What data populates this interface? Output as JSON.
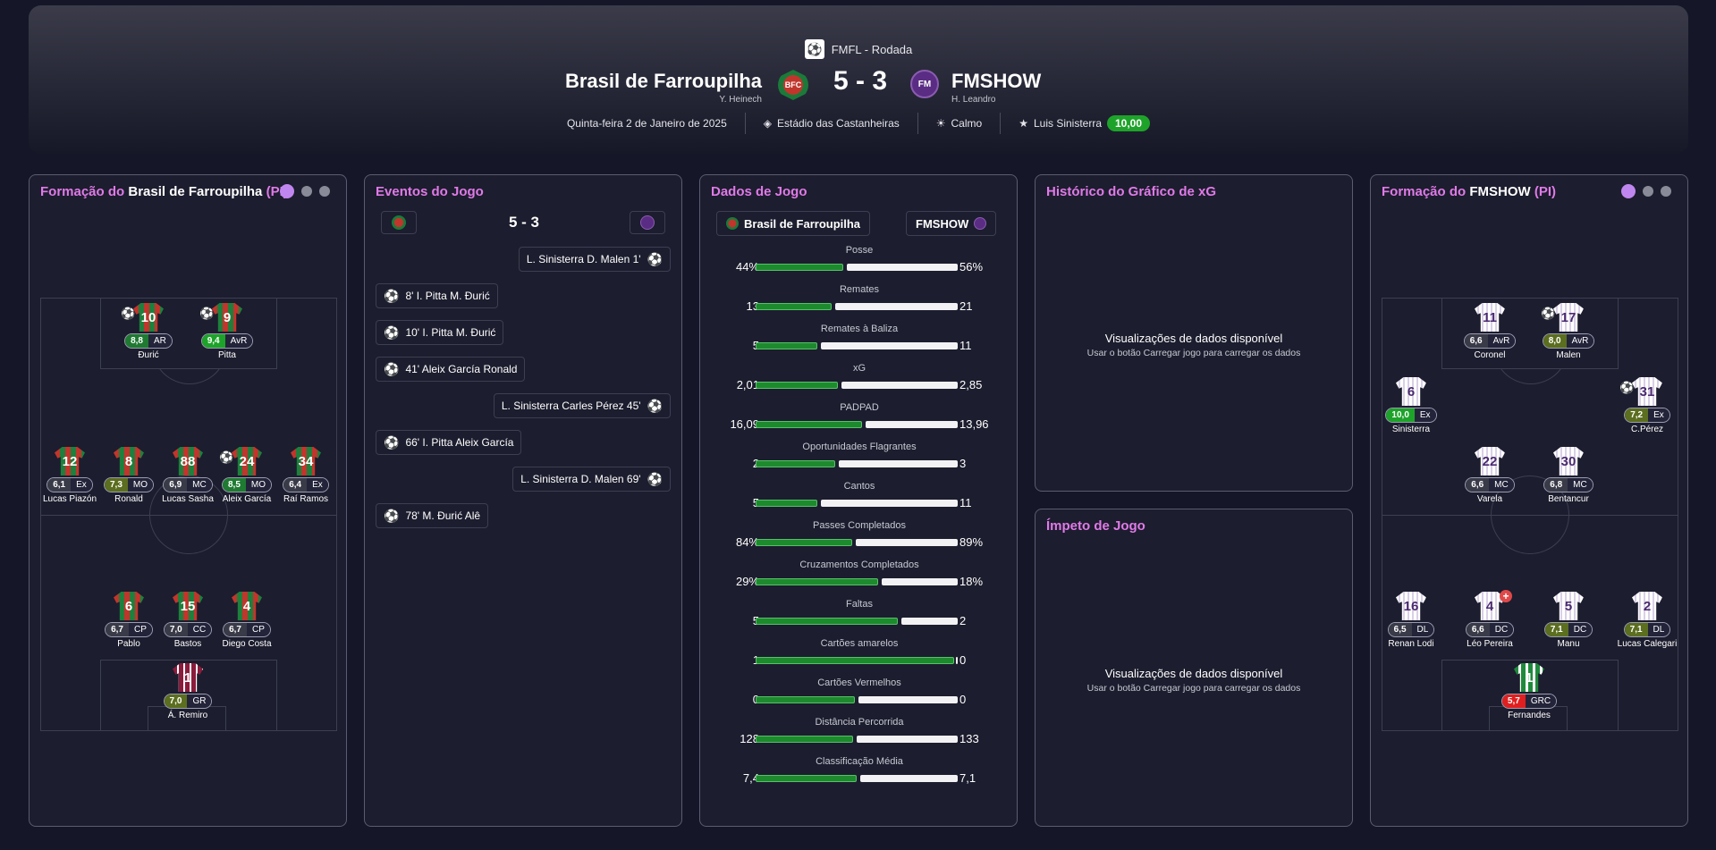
{
  "header": {
    "competition": "FMFL - Rodada",
    "home": {
      "name": "Brasil de Farroupilha",
      "manager": "Y. Heinech",
      "badge": "BFC"
    },
    "away": {
      "name": "FMSHOW",
      "manager": "H. Leandro",
      "badge": "FM"
    },
    "score": "5 - 3",
    "date": "Quinta-feira 2 de Janeiro de 2025",
    "stadium": "Estádio das Castanheiras",
    "weather": "Calmo",
    "motm": "Luis Sinisterra",
    "motm_rating": "10,00"
  },
  "home_formation": {
    "title_prefix": "Formação do",
    "team": "Brasil de Farroupilha",
    "suffix": "(PI)",
    "players": [
      {
        "num": "10",
        "rating": "8,8",
        "pos": "AR",
        "name": "Đurić",
        "rcolor": "#1f7a32",
        "ball": true
      },
      {
        "num": "9",
        "rating": "9,4",
        "pos": "AvR",
        "name": "Pitta",
        "rcolor": "#1ea32a",
        "ball": true
      },
      {
        "num": "12",
        "rating": "6,1",
        "pos": "Ex",
        "name": "Lucas Piazón",
        "rcolor": "#3a3b48"
      },
      {
        "num": "8",
        "rating": "7,3",
        "pos": "MO",
        "name": "Ronald",
        "rcolor": "#5c6e1f"
      },
      {
        "num": "88",
        "rating": "6,9",
        "pos": "MC",
        "name": "Lucas Sasha",
        "rcolor": "#3a3b48"
      },
      {
        "num": "24",
        "rating": "8,5",
        "pos": "MO",
        "name": "Aleix García",
        "rcolor": "#1f7a32",
        "ball": true
      },
      {
        "num": "34",
        "rating": "6,4",
        "pos": "Ex",
        "name": "Raí Ramos",
        "rcolor": "#3a3b48"
      },
      {
        "num": "6",
        "rating": "6,7",
        "pos": "CP",
        "name": "Pablo",
        "rcolor": "#3a3b48"
      },
      {
        "num": "15",
        "rating": "7,0",
        "pos": "CC",
        "name": "Bastos",
        "rcolor": "#3a3b48"
      },
      {
        "num": "4",
        "rating": "6,7",
        "pos": "CP",
        "name": "Diego Costa",
        "rcolor": "#3a3b48"
      },
      {
        "num": "1",
        "rating": "7,0",
        "pos": "GR",
        "name": "Á. Remiro",
        "rcolor": "#5c6e1f"
      }
    ]
  },
  "events": {
    "title": "Eventos do Jogo",
    "score": "5 - 3",
    "list": [
      {
        "text": "L. Sinisterra  D. Malen  1'",
        "side": "away"
      },
      {
        "text": "8'  I. Pitta  M. Đurić",
        "side": "home"
      },
      {
        "text": "10'  I. Pitta  M. Đurić",
        "side": "home"
      },
      {
        "text": "41'  Aleix García  Ronald",
        "side": "home"
      },
      {
        "text": "L. Sinisterra  Carles Pérez  45'",
        "side": "away"
      },
      {
        "text": "66'  I. Pitta  Aleix García",
        "side": "home"
      },
      {
        "text": "L. Sinisterra  D. Malen  69'",
        "side": "away"
      },
      {
        "text": "78'  M. Đurić  Alê",
        "side": "home"
      }
    ]
  },
  "match_data": {
    "title": "Dados de Jogo",
    "home": "Brasil de Farroupilha",
    "away": "FMSHOW",
    "stats": [
      {
        "label": "Posse",
        "home": "44%",
        "away": "56%",
        "hv": 44,
        "av": 56
      },
      {
        "label": "Remates",
        "home": "13",
        "away": "21",
        "hv": 13,
        "av": 21
      },
      {
        "label": "Remates à Baliza",
        "home": "5",
        "away": "11",
        "hv": 5,
        "av": 11
      },
      {
        "label": "xG",
        "home": "2,01",
        "away": "2,85",
        "hv": 2.01,
        "av": 2.85
      },
      {
        "label": "PADPAD",
        "home": "16,09",
        "away": "13,96",
        "hv": 16.09,
        "av": 13.96
      },
      {
        "label": "Oportunidades Flagrantes",
        "home": "2",
        "away": "3",
        "hv": 2,
        "av": 3
      },
      {
        "label": "Cantos",
        "home": "5",
        "away": "11",
        "hv": 5,
        "av": 11
      },
      {
        "label": "Passes Completados",
        "home": "84%",
        "away": "89%",
        "hv": 84,
        "av": 89
      },
      {
        "label": "Cruzamentos Completados",
        "home": "29%",
        "away": "18%",
        "hv": 29,
        "av": 18
      },
      {
        "label": "Faltas",
        "home": "5",
        "away": "2",
        "hv": 5,
        "av": 2
      },
      {
        "label": "Cartões amarelos",
        "home": "1",
        "away": "0",
        "hv": 1,
        "av": 0
      },
      {
        "label": "Cartões Vermelhos",
        "home": "0",
        "away": "0",
        "hv": 0,
        "av": 0
      },
      {
        "label": "Distância Percorrida",
        "home": "128",
        "away": "133",
        "hv": 128,
        "av": 133
      },
      {
        "label": "Classificação Média",
        "home": "7,4",
        "away": "7,1",
        "hv": 7.4,
        "av": 7.1
      }
    ]
  },
  "xg_history": {
    "title": "Histórico do Gráfico de xG",
    "msg": "Visualizações de dados disponível",
    "sub": "Usar o botão Carregar jogo para carregar os dados"
  },
  "momentum": {
    "title": "Ímpeto de Jogo",
    "msg": "Visualizações de dados disponível",
    "sub": "Usar o botão Carregar jogo para carregar os dados"
  },
  "away_formation": {
    "title_prefix": "Formação do",
    "team": "FMSHOW",
    "suffix": "(PI)",
    "players": [
      {
        "num": "11",
        "rating": "6,6",
        "pos": "AvR",
        "name": "Coronel",
        "rcolor": "#3a3b48"
      },
      {
        "num": "17",
        "rating": "8,0",
        "pos": "AvR",
        "name": "Malen",
        "rcolor": "#5c6e1f",
        "ball": true
      },
      {
        "num": "6",
        "rating": "10,0",
        "pos": "Ex",
        "name": "Sinisterra",
        "rcolor": "#1ea32a"
      },
      {
        "num": "31",
        "rating": "7,2",
        "pos": "Ex",
        "name": "C.Pérez",
        "rcolor": "#5c6e1f",
        "ball": true
      },
      {
        "num": "22",
        "rating": "6,6",
        "pos": "MC",
        "name": "Varela",
        "rcolor": "#3a3b48"
      },
      {
        "num": "30",
        "rating": "6,8",
        "pos": "MC",
        "name": "Bentancur",
        "rcolor": "#3a3b48"
      },
      {
        "num": "16",
        "rating": "6,5",
        "pos": "DL",
        "name": "Renan Lodi",
        "rcolor": "#3a3b48"
      },
      {
        "num": "4",
        "rating": "6,6",
        "pos": "DC",
        "name": "Léo Pereira",
        "rcolor": "#3a3b48",
        "injury": true
      },
      {
        "num": "5",
        "rating": "7,1",
        "pos": "DC",
        "name": "Manu",
        "rcolor": "#5c6e1f"
      },
      {
        "num": "2",
        "rating": "7,1",
        "pos": "DL",
        "name": "Lucas Calegari",
        "rcolor": "#5c6e1f"
      },
      {
        "num": "1",
        "rating": "5,7",
        "pos": "GRC",
        "name": "Fernandes",
        "rcolor": "#e02020"
      }
    ]
  }
}
